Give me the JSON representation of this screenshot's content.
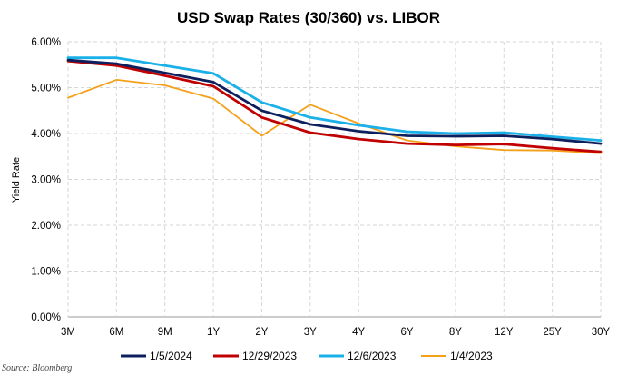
{
  "chart_data": {
    "type": "line",
    "title": "USD Swap Rates (30/360) vs. LIBOR",
    "xlabel": "",
    "ylabel": "Yield Rate",
    "source": "Source: Bloomberg",
    "categories": [
      "3M",
      "6M",
      "9M",
      "1Y",
      "2Y",
      "3Y",
      "4Y",
      "6Y",
      "8Y",
      "12Y",
      "25Y",
      "30Y"
    ],
    "yticks": [
      "0.00%",
      "1.00%",
      "2.00%",
      "3.00%",
      "4.00%",
      "5.00%",
      "6.00%"
    ],
    "ylim": [
      0,
      6
    ],
    "grid": true,
    "legend_position": "bottom",
    "series": [
      {
        "name": "1/5/2024",
        "color": "#0d1f5c",
        "values": [
          5.6,
          5.52,
          5.32,
          5.12,
          4.5,
          4.2,
          4.05,
          3.95,
          3.94,
          3.95,
          3.88,
          3.78
        ]
      },
      {
        "name": "12/29/2023",
        "color": "#c00000",
        "values": [
          5.58,
          5.48,
          5.26,
          5.03,
          4.35,
          4.02,
          3.88,
          3.78,
          3.75,
          3.77,
          3.68,
          3.6
        ]
      },
      {
        "name": "12/6/2023",
        "color": "#1ab0e8",
        "values": [
          5.65,
          5.65,
          5.48,
          5.31,
          4.68,
          4.35,
          4.18,
          4.04,
          4.0,
          4.02,
          3.93,
          3.85
        ]
      },
      {
        "name": "1/4/2023",
        "color": "#f5a01a",
        "values": [
          4.78,
          5.17,
          5.05,
          4.76,
          3.95,
          4.63,
          4.22,
          3.85,
          3.72,
          3.64,
          3.63,
          3.57
        ]
      }
    ]
  }
}
